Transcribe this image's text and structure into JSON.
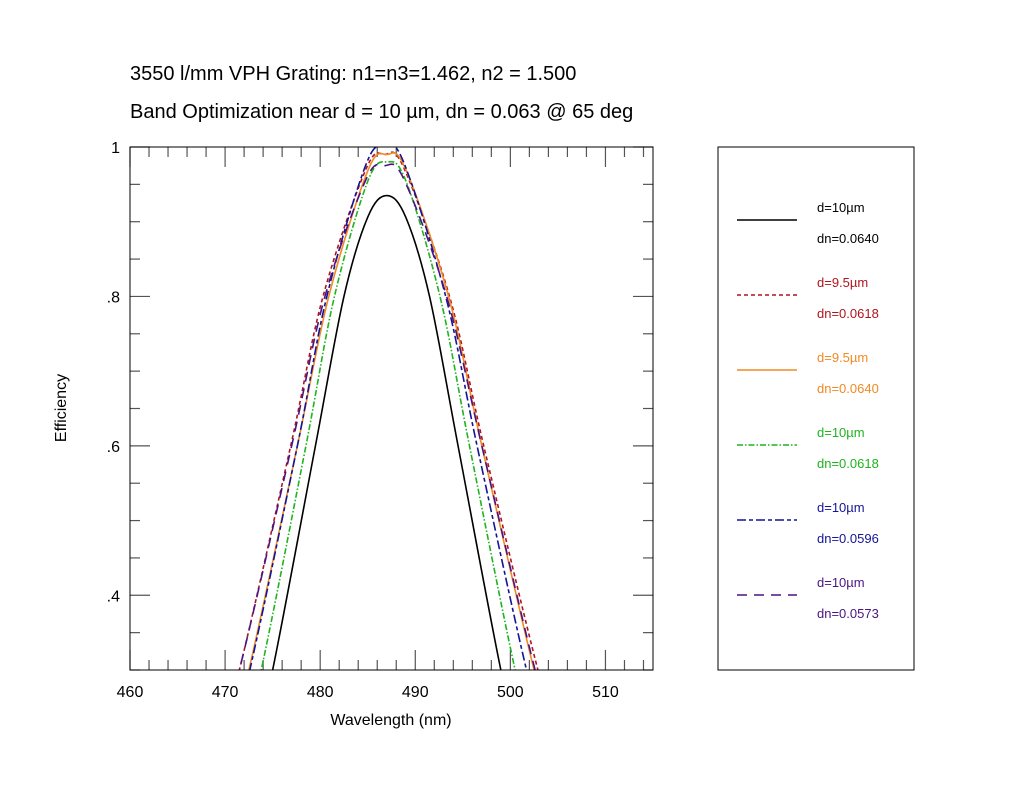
{
  "chart_data": {
    "type": "line",
    "title": "3550 l/mm VPH Grating: n1=n3=1.462, n2 = 1.500",
    "subtitle": "Band Optimization near d = 10 µm, dn = 0.063 @ 65 deg",
    "xlabel": "Wavelength (nm)",
    "ylabel": "Efficiency",
    "xlim": [
      460,
      515
    ],
    "ylim": [
      0.3,
      1.0
    ],
    "xticks": [
      460,
      470,
      480,
      490,
      500,
      510
    ],
    "xtick_labels": [
      "460",
      "470",
      "480",
      "490",
      "500",
      "510"
    ],
    "yticks": [
      0.4,
      0.6,
      0.8,
      1.0
    ],
    "ytick_labels": [
      ".4",
      ".6",
      ".8",
      "1"
    ],
    "x_minor_step": 2,
    "y_minor_step": 0.05,
    "grid": false,
    "legend_placement": "right-outside",
    "series": [
      {
        "name": "d=10µm dn=0.0640",
        "label1": "d=10µm",
        "label2": "dn=0.0640",
        "color": "#000000",
        "dash": "solid",
        "x": [
          473.0,
          475.0,
          479.5,
          482.5,
          485.0,
          487.0,
          489.0,
          491.5,
          494.5,
          499.0,
          501.0
        ],
        "y": [
          0.2,
          0.3,
          0.6,
          0.8,
          0.906,
          0.935,
          0.906,
          0.8,
          0.6,
          0.3,
          0.2
        ]
      },
      {
        "name": "d=9.5µm dn=0.0618",
        "label1": "d=9.5µm",
        "label2": "dn=0.0618",
        "color": "#b0141e",
        "dash": "dashed",
        "x": [
          469.1,
          471.5,
          476.9,
          480.3,
          484.8,
          486.8,
          488.8,
          493.6,
          497.2,
          502.9,
          505.4
        ],
        "y": [
          0.2,
          0.3,
          0.6,
          0.8,
          0.97,
          0.99,
          0.972,
          0.8,
          0.6,
          0.3,
          0.2
        ]
      },
      {
        "name": "d=9.5µm dn=0.0640",
        "label1": "d=9.5µm",
        "label2": "dn=0.0640",
        "color": "#f08a24",
        "dash": "solid",
        "x": [
          470.2,
          472.5,
          477.6,
          480.9,
          485.0,
          487.0,
          489.0,
          493.5,
          497.0,
          502.5,
          504.9
        ],
        "y": [
          0.2,
          0.3,
          0.6,
          0.8,
          0.968,
          0.99,
          0.97,
          0.8,
          0.6,
          0.3,
          0.2
        ]
      },
      {
        "name": "d=10µm dn=0.0618",
        "label1": "d=10µm",
        "label2": "dn=0.0618",
        "color": "#1eb41e",
        "dash": "dash-dot",
        "x": [
          471.7,
          473.8,
          478.5,
          481.5,
          485.0,
          487.0,
          489.0,
          492.6,
          495.7,
          500.5,
          502.6
        ],
        "y": [
          0.2,
          0.3,
          0.6,
          0.8,
          0.954,
          0.98,
          0.955,
          0.8,
          0.6,
          0.3,
          0.2
        ]
      },
      {
        "name": "d=10µm dn=0.0596",
        "label1": "d=10µm",
        "label2": "dn=0.0596",
        "color": "#141496",
        "dash": "long-short-dash",
        "x": [
          470.4,
          472.6,
          477.6,
          480.7,
          484.8,
          486.8,
          488.8,
          493.2,
          496.5,
          501.7,
          504.0
        ],
        "y": [
          0.2,
          0.3,
          0.6,
          0.8,
          0.976,
          1.0,
          0.979,
          0.8,
          0.6,
          0.3,
          0.2
        ]
      },
      {
        "name": "d=10µm dn=0.0573",
        "label1": "d=10µm",
        "label2": "dn=0.0573",
        "color": "#4b1482",
        "dash": "long-dash",
        "x": [
          469.1,
          471.5,
          477.0,
          480.5,
          484.8,
          486.8,
          488.8,
          493.3,
          497.0,
          502.6,
          505.1
        ],
        "y": [
          0.2,
          0.3,
          0.6,
          0.8,
          0.956,
          0.975,
          0.957,
          0.8,
          0.6,
          0.3,
          0.2
        ]
      }
    ]
  }
}
